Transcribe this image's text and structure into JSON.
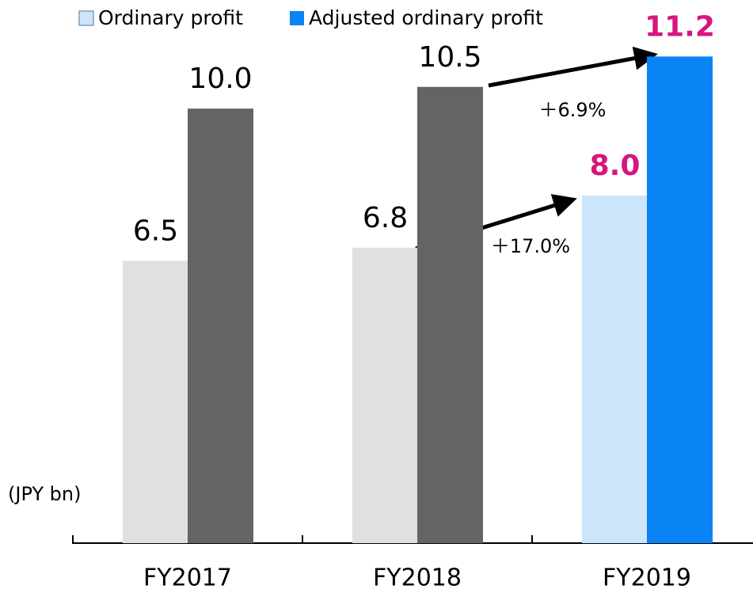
{
  "chart_data": {
    "type": "bar",
    "unit_label": "(JPY bn)",
    "categories": [
      "FY2017",
      "FY2018",
      "FY2019"
    ],
    "series": [
      {
        "name": "Ordinary profit",
        "color": "#cce5fb",
        "colors": [
          "#e0e0e0",
          "#e0e0e0",
          "#cce5fb"
        ],
        "values": [
          6.5,
          6.8,
          8.0
        ],
        "value_labels": [
          "6.5",
          "6.8",
          "8.0"
        ],
        "label_colors": [
          "#000000",
          "#000000",
          "#d6177f"
        ]
      },
      {
        "name": "Adjusted ordinary profit",
        "color": "#0a84f5",
        "colors": [
          "#646464",
          "#646464",
          "#0a84f5"
        ],
        "values": [
          10.0,
          10.5,
          11.2
        ],
        "value_labels": [
          "10.0",
          "10.5",
          "11.2"
        ],
        "label_colors": [
          "#000000",
          "#000000",
          "#d6177f"
        ]
      }
    ],
    "ylim": [
      0,
      12.5
    ],
    "annotations": [
      "＋6.9%",
      "＋17.0%"
    ]
  }
}
